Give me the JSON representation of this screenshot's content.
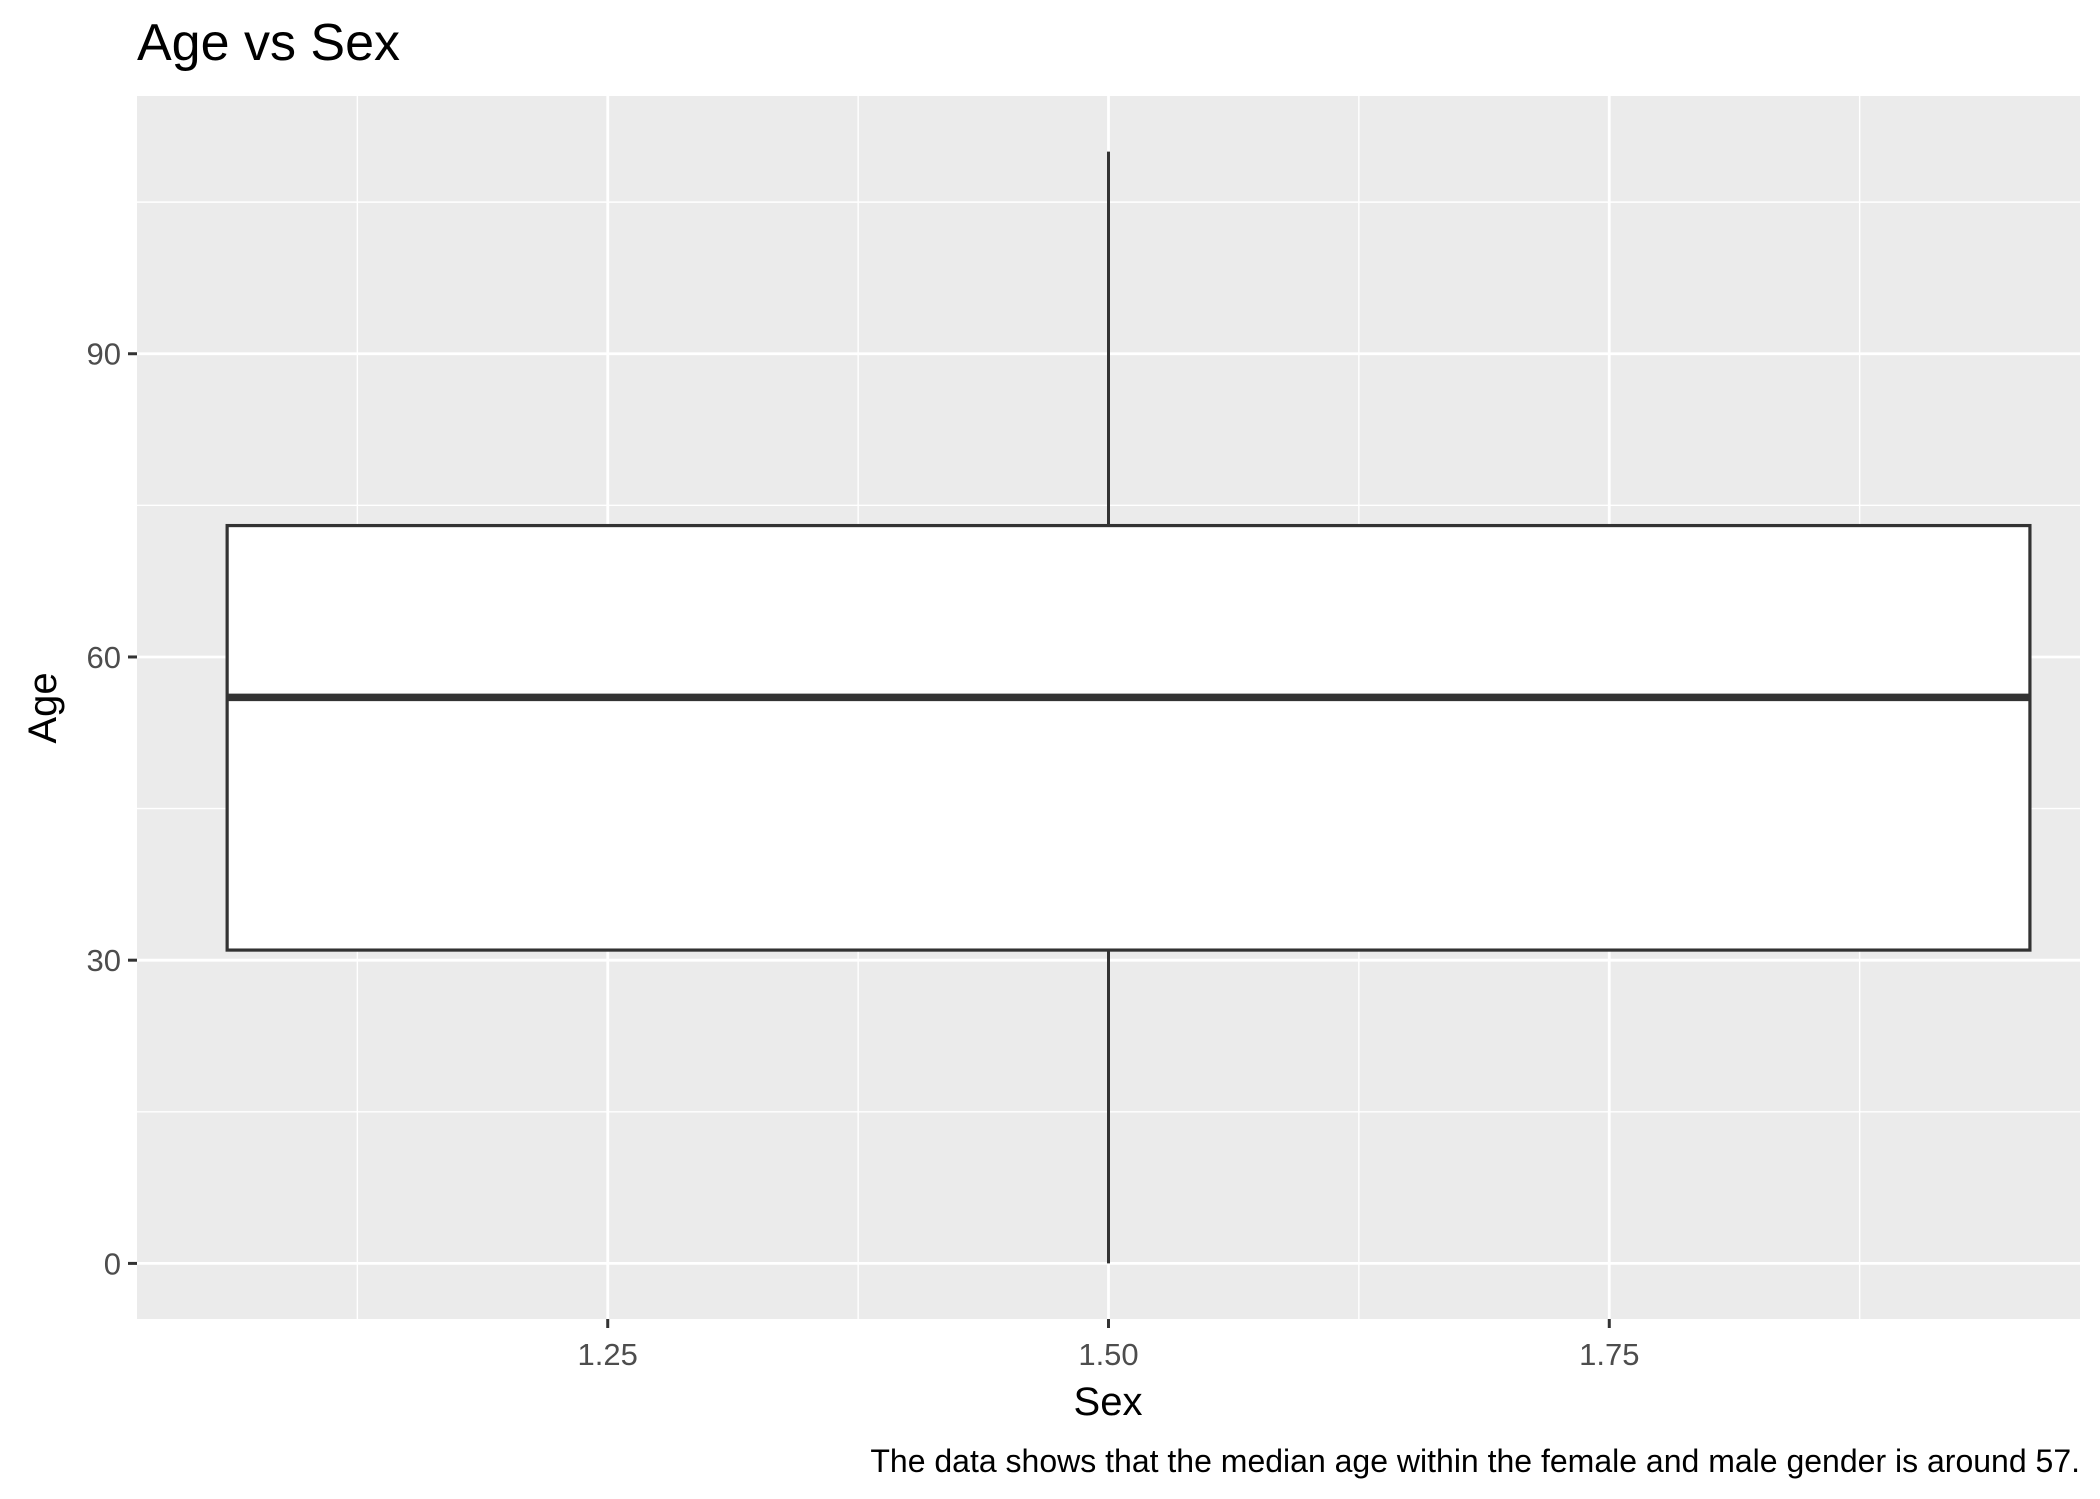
{
  "chart_data": {
    "type": "box",
    "title": "Age vs Sex",
    "xlabel": "Sex",
    "ylabel": "Age",
    "caption": "The data shows that the median age within the female and male gender is around 57.",
    "xlim": [
      1.015,
      1.985
    ],
    "ylim": [
      -5.5,
      115.5
    ],
    "x_ticks": [
      1.25,
      1.5,
      1.75
    ],
    "x_tick_labels": [
      "1.25",
      "1.50",
      "1.75"
    ],
    "y_ticks": [
      0,
      30,
      60,
      90
    ],
    "y_tick_labels": [
      "0",
      "30",
      "60",
      "90"
    ],
    "grid": true,
    "boxes": [
      {
        "x": 1.5,
        "x_min": 1.06,
        "x_max": 1.96,
        "min": 0,
        "q1": 31,
        "median": 56,
        "q3": 73,
        "max": 110
      }
    ],
    "colors": {
      "panel_background": "#ebebeb",
      "grid": "#ffffff",
      "box_fill": "#ffffff",
      "box_stroke": "#333333"
    }
  }
}
